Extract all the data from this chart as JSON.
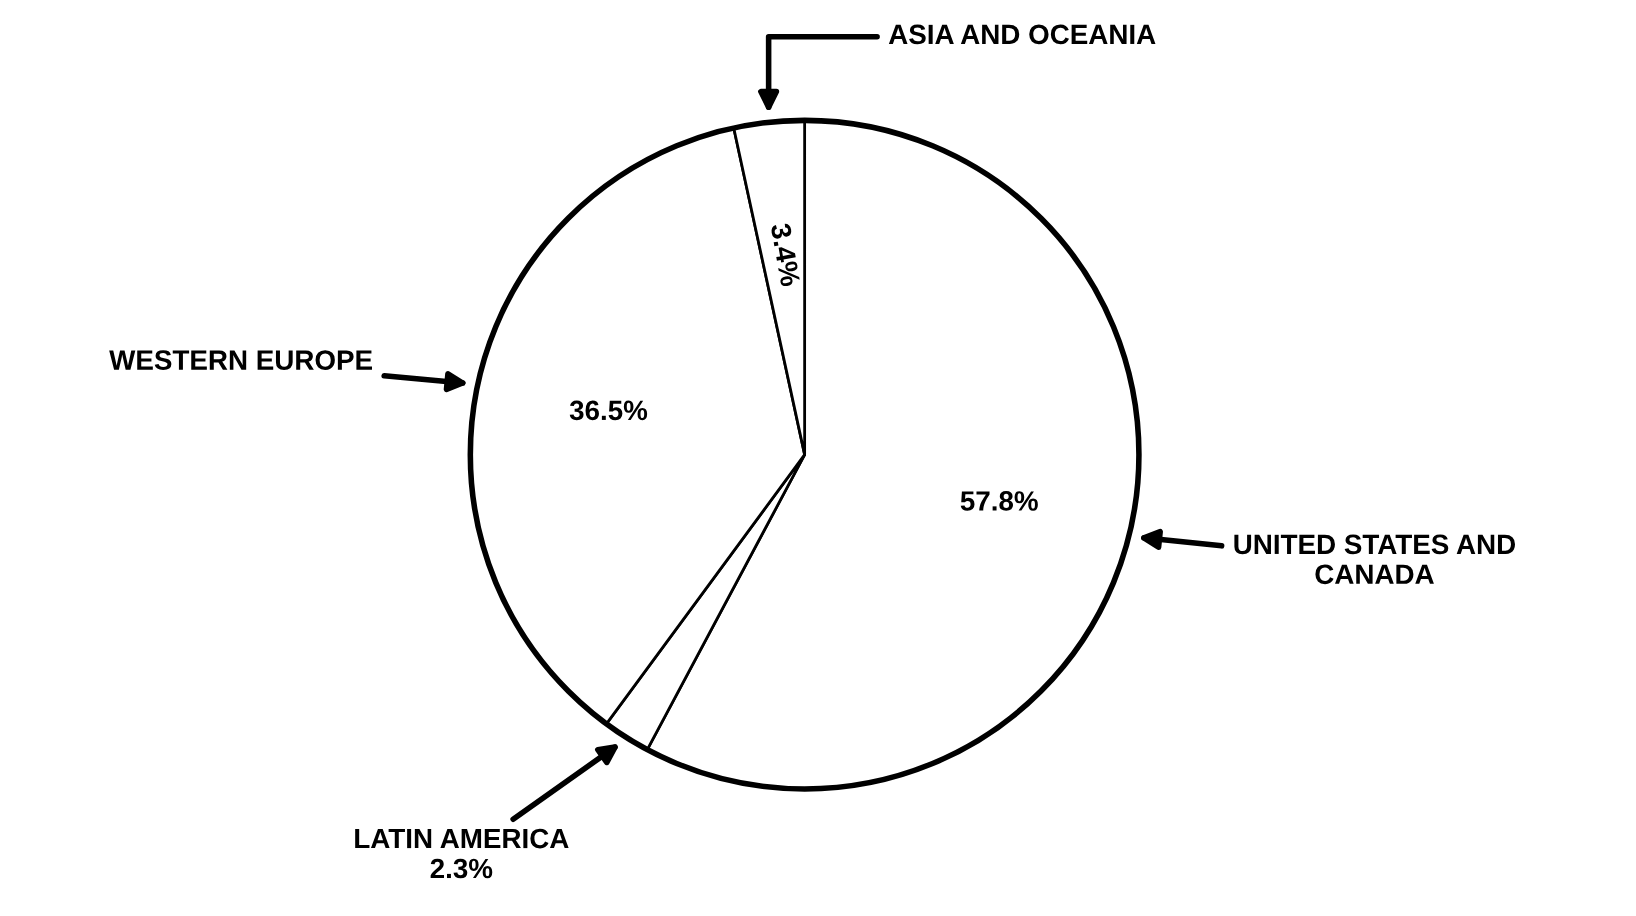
{
  "chart_data": {
    "type": "pie",
    "categories": [
      "UNITED STATES AND\nCANADA",
      "LATIN AMERICA",
      "WESTERN EUROPE",
      "ASIA AND OCEANIA"
    ],
    "values": [
      57.8,
      2.3,
      36.5,
      3.4
    ],
    "value_labels": [
      "57.8%",
      "2.3%",
      "36.5%",
      "3.4%"
    ],
    "colors": [
      "#ffffff",
      "#ffffff",
      "#ffffff",
      "#ffffff"
    ],
    "legend": false
  }
}
